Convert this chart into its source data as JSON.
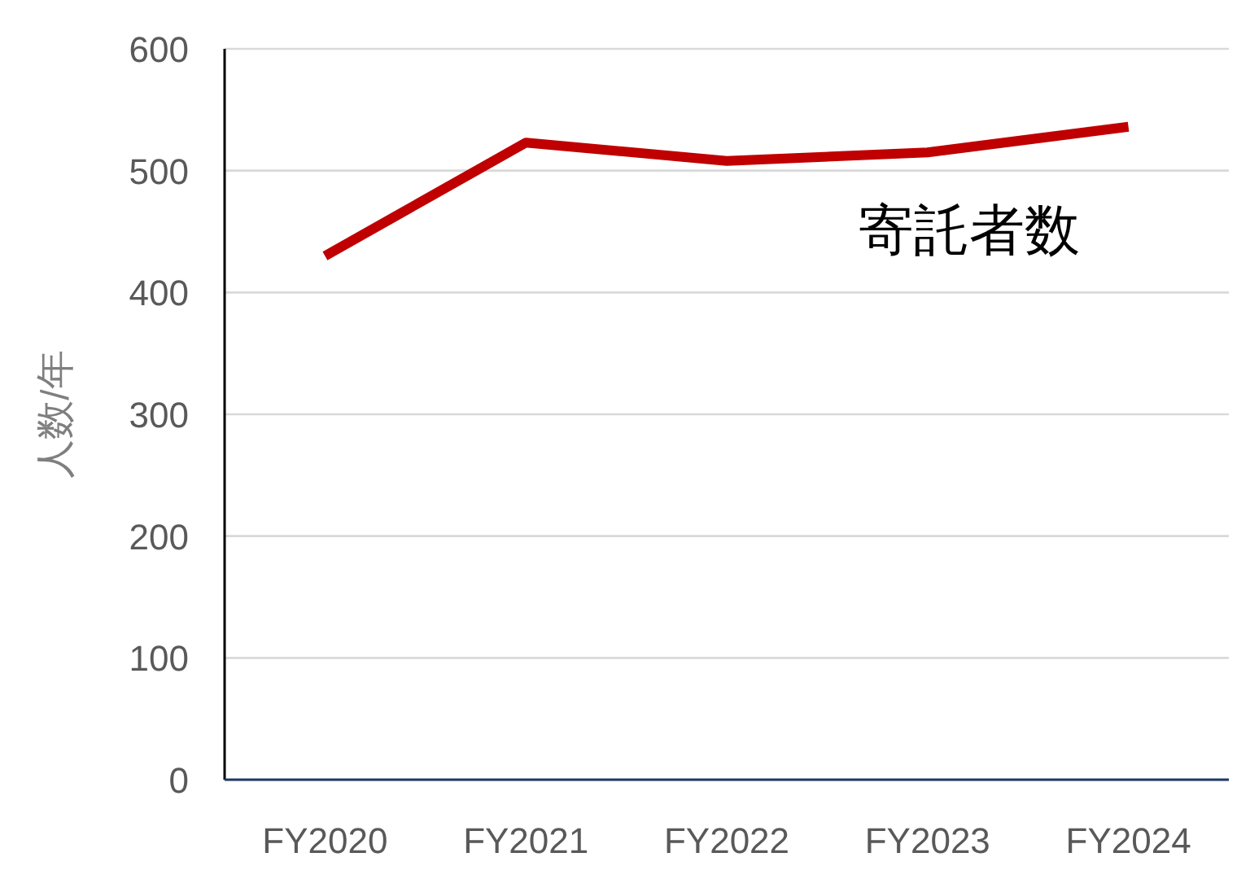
{
  "chart_data": {
    "type": "line",
    "ylabel": "人数/年",
    "categories": [
      "FY2020",
      "FY2021",
      "FY2022",
      "FY2023",
      "FY2024"
    ],
    "series": [
      {
        "name": "寄託者数",
        "color": "#c00000",
        "values": [
          430,
          523,
          508,
          515,
          536
        ]
      }
    ],
    "ylim": [
      0,
      600
    ],
    "yticks": [
      0,
      100,
      200,
      300,
      400,
      500,
      600
    ],
    "grid": "y",
    "legend": false,
    "marker": "none",
    "line_style": "solid"
  }
}
